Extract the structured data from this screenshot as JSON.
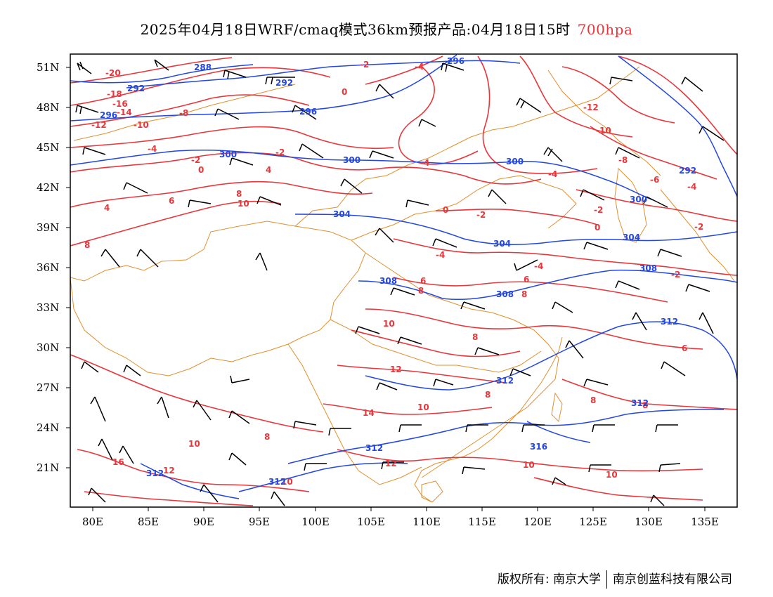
{
  "title": {
    "text": "2025年04月18日WRF/cmaq模式36km预报产品:04月18日15时",
    "level": "700hpa"
  },
  "map": {
    "lon_labels": [
      "80E",
      "85E",
      "90E",
      "95E",
      "100E",
      "105E",
      "110E",
      "115E",
      "120E",
      "125E",
      "130E",
      "135E"
    ],
    "lat_labels": [
      "51N",
      "48N",
      "45N",
      "42N",
      "39N",
      "36N",
      "33N",
      "30N",
      "27N",
      "24N",
      "21N"
    ],
    "lon_range": [
      78,
      138
    ],
    "lat_range": [
      18,
      52
    ],
    "temperature_contour_labels": [
      "-20",
      "-18",
      "-16",
      "-14",
      "-12",
      "-10",
      "-8",
      "-6",
      "-4",
      "-2",
      "0",
      "2",
      "4",
      "6",
      "8",
      "10",
      "12",
      "14",
      "16"
    ],
    "height_contour_labels": [
      "288",
      "292",
      "296",
      "300",
      "304",
      "308",
      "312",
      "316"
    ],
    "colors": {
      "temperature_contour": "#e8363b",
      "height_contour": "#2347e0",
      "boundary": "#e0902e",
      "wind_barb": "#000000"
    },
    "layers": [
      "temperature-contours",
      "geopotential-height-contours",
      "wind-barbs",
      "coastlines-and-boundaries"
    ]
  },
  "footer": {
    "copyright": "版权所有: 南京大学",
    "company": "南京创蓝科技有限公司"
  }
}
